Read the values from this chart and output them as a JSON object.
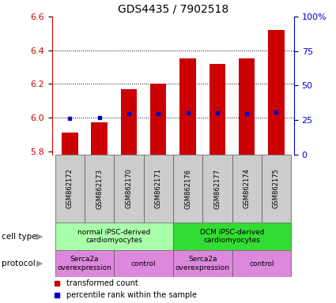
{
  "title": "GDS4435 / 7902518",
  "samples": [
    "GSM862172",
    "GSM862173",
    "GSM862170",
    "GSM862171",
    "GSM862176",
    "GSM862177",
    "GSM862174",
    "GSM862175"
  ],
  "red_values": [
    5.91,
    5.97,
    6.17,
    6.2,
    6.35,
    6.32,
    6.35,
    6.52
  ],
  "blue_y": [
    5.994,
    5.999,
    6.025,
    6.025,
    6.028,
    6.028,
    6.025,
    6.032
  ],
  "ylim": [
    5.78,
    6.6
  ],
  "y_left_ticks": [
    5.8,
    6.0,
    6.2,
    6.4,
    6.6
  ],
  "y_right_ticks": [
    0,
    25,
    50,
    75,
    100
  ],
  "bar_bottom": 5.78,
  "bar_color": "#cc0000",
  "blue_color": "#0000cc",
  "cell_type_groups": [
    {
      "label": "normal iPSC-derived\ncardiomyocytes",
      "start": 0,
      "end": 4,
      "color": "#aaffaa"
    },
    {
      "label": "DCM iPSC-derived\ncardiomyocytes",
      "start": 4,
      "end": 8,
      "color": "#33dd33"
    }
  ],
  "protocol_groups": [
    {
      "label": "Serca2a\noverexpression",
      "start": 0,
      "end": 2,
      "color": "#dd88dd"
    },
    {
      "label": "control",
      "start": 2,
      "end": 4,
      "color": "#dd88dd"
    },
    {
      "label": "Serca2a\noverexpression",
      "start": 4,
      "end": 6,
      "color": "#dd88dd"
    },
    {
      "label": "control",
      "start": 6,
      "end": 8,
      "color": "#dd88dd"
    }
  ],
  "legend_items": [
    {
      "color": "#cc0000",
      "label": "transformed count"
    },
    {
      "color": "#0000cc",
      "label": "percentile rank within the sample"
    }
  ],
  "bar_width": 0.55,
  "title_fontsize": 10,
  "sample_fontsize": 6,
  "annot_fontsize": 6.5,
  "label_fontsize": 7.5
}
